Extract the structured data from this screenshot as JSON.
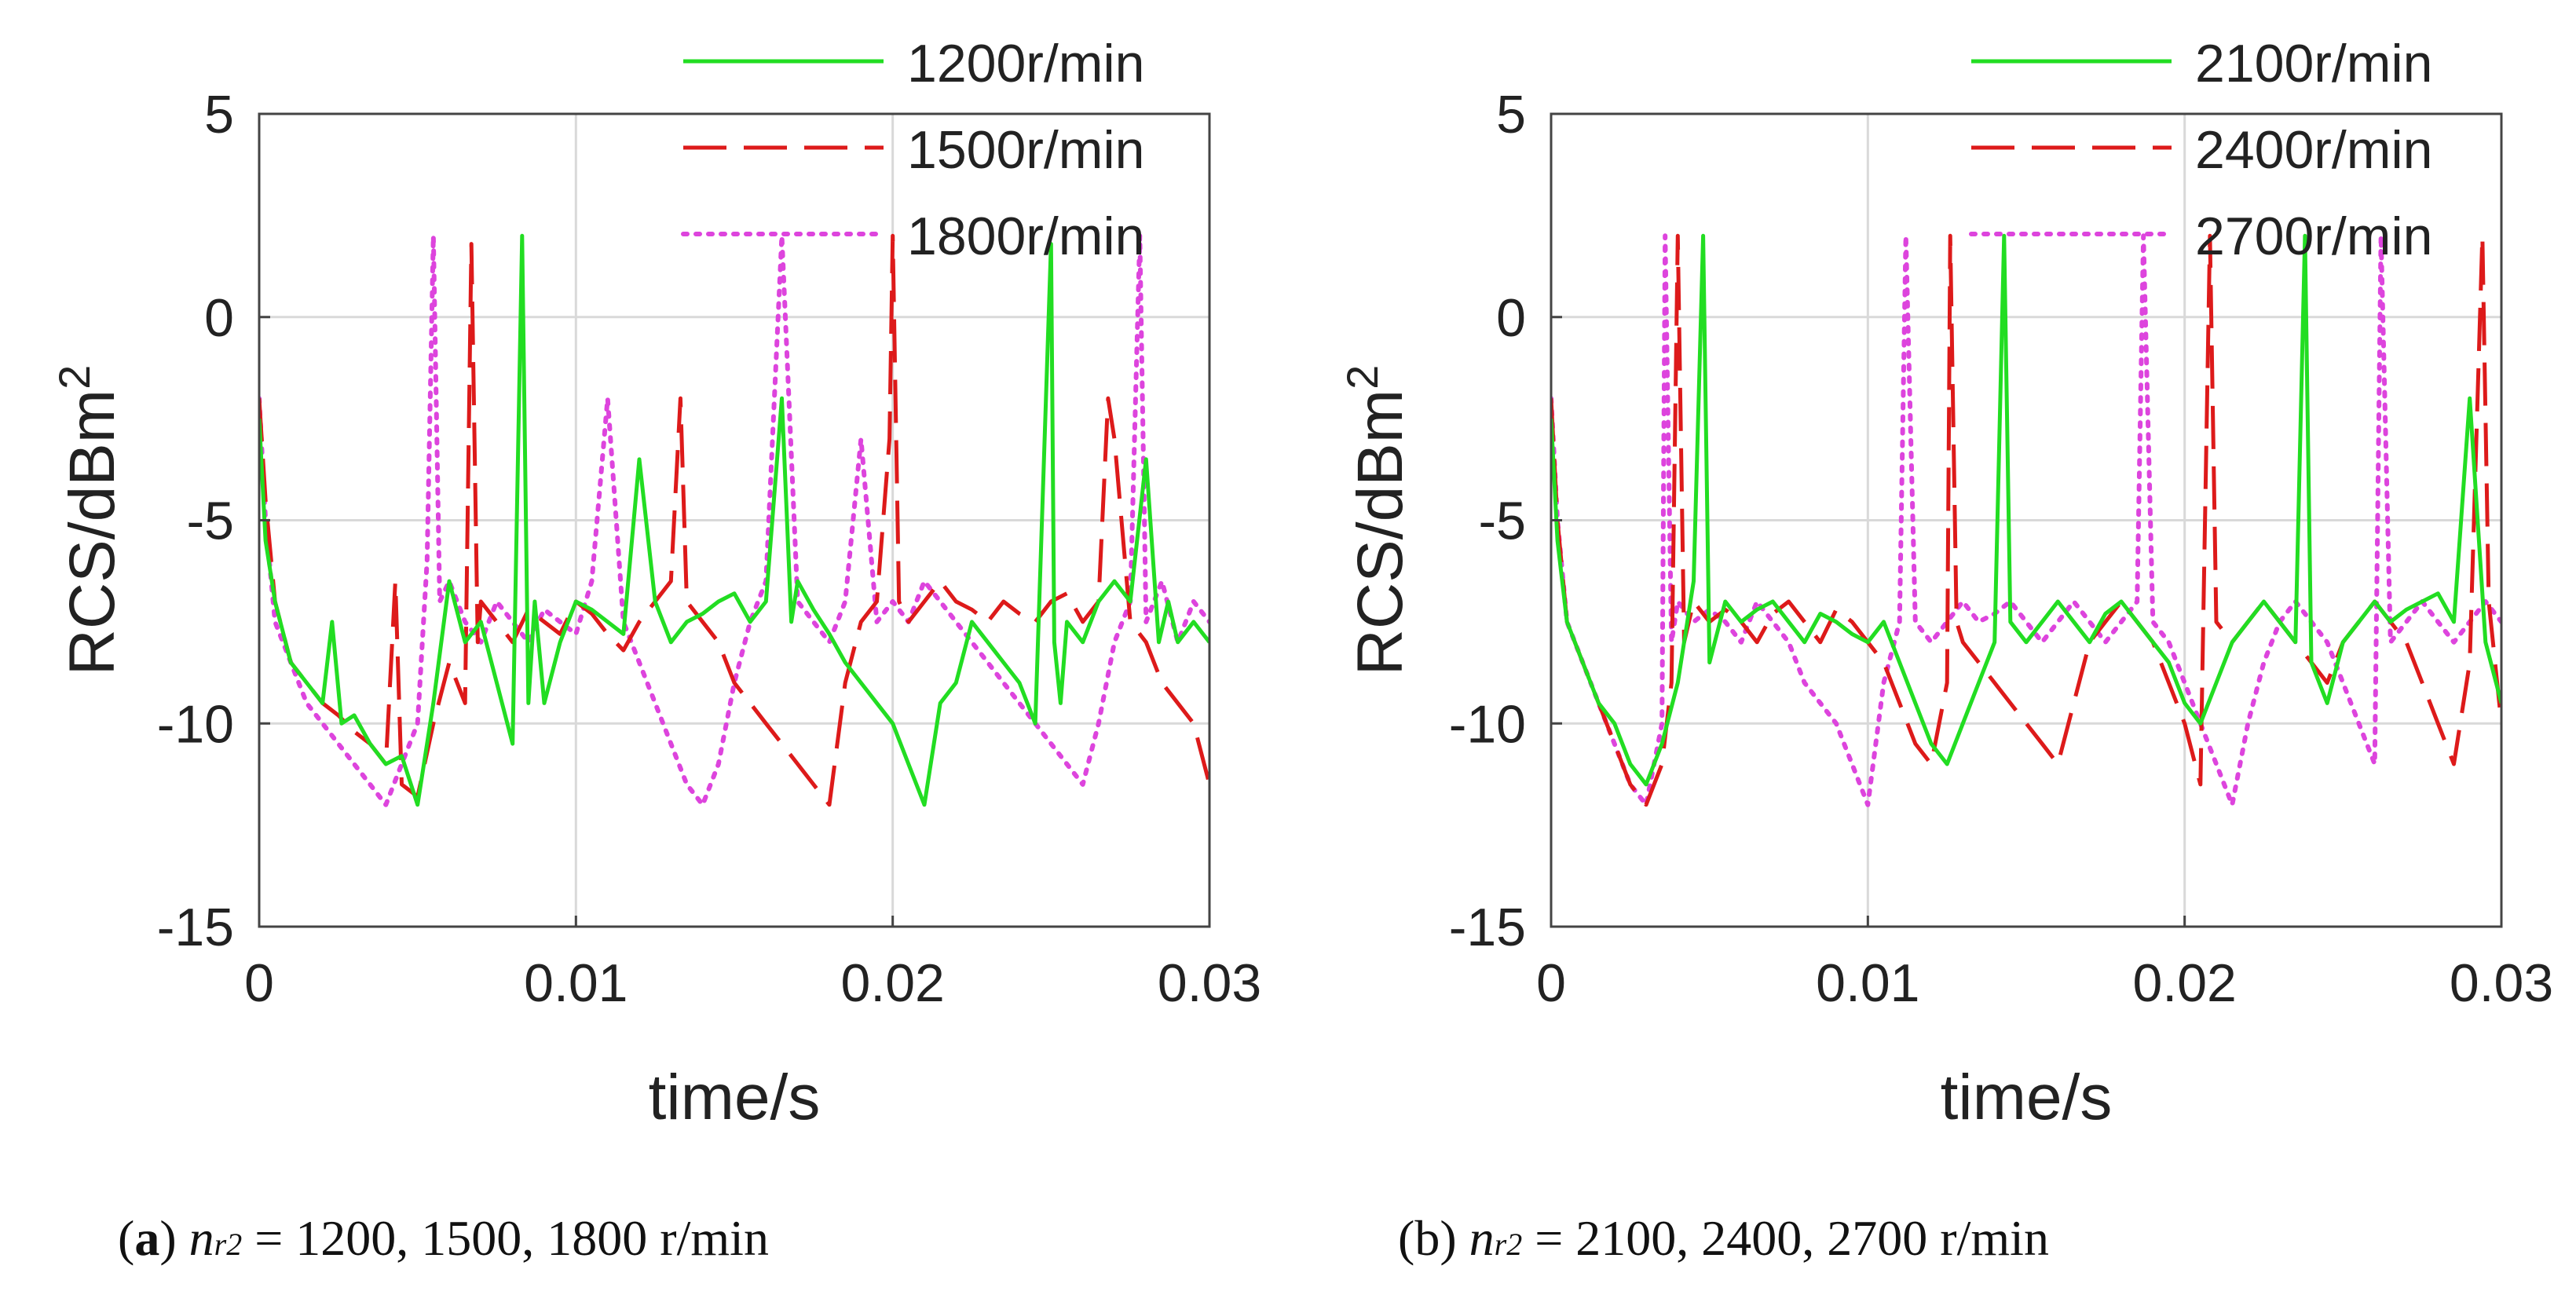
{
  "colors": {
    "green": "#22dd22",
    "red": "#dd1a1a",
    "magenta": "#dd44dd",
    "grid": "#d9d9d9",
    "axis": "#444444"
  },
  "chart_data": [
    {
      "type": "line",
      "panel": "a",
      "xlabel": "time/s",
      "ylabel": "RCS/dBm",
      "ylabel_sup": "2",
      "xlim": [
        0,
        0.03
      ],
      "ylim": [
        -15,
        5
      ],
      "xticks": [
        "0",
        "0.01",
        "0.02",
        "0.03"
      ],
      "yticks": [
        "5",
        "0",
        "-5",
        "-10",
        "-15"
      ],
      "grid": true,
      "legend_position": "top-right, above the plot",
      "series": [
        {
          "name": "1200r/min",
          "style": "solid",
          "color": "#22dd22",
          "x": [
            0.0,
            0.0002,
            0.0005,
            0.001,
            0.0015,
            0.002,
            0.0023,
            0.0026,
            0.003,
            0.0035,
            0.004,
            0.0045,
            0.005,
            0.0055,
            0.006,
            0.0065,
            0.007,
            0.0075,
            0.008,
            0.0083,
            0.0085,
            0.0087,
            0.009,
            0.0095,
            0.01,
            0.0105,
            0.011,
            0.0115,
            0.012,
            0.0125,
            0.013,
            0.0135,
            0.014,
            0.0145,
            0.015,
            0.0155,
            0.016,
            0.0165,
            0.0168,
            0.017,
            0.0175,
            0.018,
            0.0185,
            0.019,
            0.0195,
            0.02,
            0.0205,
            0.021,
            0.0215,
            0.022,
            0.0225,
            0.023,
            0.0235,
            0.024,
            0.0245,
            0.025,
            0.0251,
            0.0253,
            0.0255,
            0.026,
            0.0265,
            0.027,
            0.0275,
            0.028,
            0.0284,
            0.0287,
            0.029,
            0.0295,
            0.03
          ],
          "y": [
            -2.5,
            -5.5,
            -7.0,
            -8.5,
            -9.0,
            -9.5,
            -7.5,
            -10.0,
            -9.8,
            -10.5,
            -11.0,
            -10.8,
            -12.0,
            -9.5,
            -6.5,
            -8.0,
            -7.5,
            -9.0,
            -10.5,
            2.0,
            -9.5,
            -7.0,
            -9.5,
            -8.0,
            -7.0,
            -7.2,
            -7.5,
            -7.8,
            -3.5,
            -7.0,
            -8.0,
            -7.5,
            -7.3,
            -7.0,
            -6.8,
            -7.5,
            -7.0,
            -2.0,
            -7.5,
            -6.5,
            -7.2,
            -7.8,
            -8.5,
            -9.0,
            -9.5,
            -10.0,
            -11.0,
            -12.0,
            -9.5,
            -9.0,
            -7.5,
            -8.0,
            -8.5,
            -9.0,
            -10.0,
            1.8,
            -8.0,
            -9.5,
            -7.5,
            -8.0,
            -7.0,
            -6.5,
            -7.0,
            -3.5,
            -8.0,
            -7.0,
            -8.0,
            -7.5,
            -8.0
          ]
        },
        {
          "name": "1500r/min",
          "style": "dashed",
          "color": "#dd1a1a",
          "x": [
            0.0,
            0.0002,
            0.0005,
            0.001,
            0.0015,
            0.002,
            0.0025,
            0.003,
            0.0035,
            0.004,
            0.0043,
            0.0045,
            0.005,
            0.0055,
            0.006,
            0.0065,
            0.0067,
            0.0069,
            0.007,
            0.0075,
            0.008,
            0.0085,
            0.009,
            0.0095,
            0.01,
            0.0105,
            0.011,
            0.0115,
            0.012,
            0.0125,
            0.013,
            0.0133,
            0.0135,
            0.014,
            0.0145,
            0.015,
            0.0155,
            0.016,
            0.0165,
            0.017,
            0.0175,
            0.018,
            0.0185,
            0.019,
            0.0195,
            0.0199,
            0.02,
            0.0202,
            0.0205,
            0.021,
            0.0215,
            0.022,
            0.0225,
            0.023,
            0.0235,
            0.024,
            0.0245,
            0.025,
            0.0255,
            0.026,
            0.0265,
            0.0268,
            0.027,
            0.0275,
            0.028,
            0.0285,
            0.029,
            0.0295,
            0.03
          ],
          "y": [
            -2.0,
            -4.5,
            -7.0,
            -8.5,
            -9.0,
            -9.5,
            -9.8,
            -10.2,
            -10.5,
            -11.0,
            -6.5,
            -11.5,
            -11.8,
            -10.0,
            -8.5,
            -9.5,
            1.8,
            -8.0,
            -7.0,
            -7.5,
            -8.0,
            -7.2,
            -7.5,
            -7.8,
            -7.0,
            -7.3,
            -7.8,
            -8.2,
            -7.5,
            -7.0,
            -6.5,
            -2.0,
            -7.0,
            -7.5,
            -8.0,
            -9.0,
            -9.5,
            -10.0,
            -10.5,
            -11.0,
            -11.5,
            -12.0,
            -9.0,
            -7.5,
            -7.0,
            -3.0,
            2.0,
            -7.0,
            -7.5,
            -7.0,
            -6.5,
            -7.0,
            -7.2,
            -7.5,
            -7.0,
            -7.3,
            -7.5,
            -7.0,
            -6.8,
            -7.5,
            -7.0,
            -2.0,
            -3.0,
            -7.5,
            -8.0,
            -9.0,
            -9.5,
            -10.0,
            -11.5
          ]
        },
        {
          "name": "1800r/min",
          "style": "dotted",
          "color": "#dd44dd",
          "x": [
            0.0,
            0.0002,
            0.0005,
            0.001,
            0.0015,
            0.002,
            0.0025,
            0.003,
            0.0035,
            0.004,
            0.0045,
            0.005,
            0.0053,
            0.0055,
            0.0057,
            0.006,
            0.0065,
            0.007,
            0.0075,
            0.008,
            0.0085,
            0.009,
            0.0095,
            0.01,
            0.0105,
            0.011,
            0.0115,
            0.012,
            0.0125,
            0.013,
            0.0135,
            0.014,
            0.0145,
            0.015,
            0.0155,
            0.016,
            0.0165,
            0.017,
            0.0175,
            0.018,
            0.0185,
            0.019,
            0.0195,
            0.02,
            0.0205,
            0.021,
            0.0215,
            0.022,
            0.0225,
            0.023,
            0.0235,
            0.024,
            0.0245,
            0.025,
            0.0255,
            0.026,
            0.0265,
            0.027,
            0.0275,
            0.0278,
            0.028,
            0.0285,
            0.029,
            0.0295,
            0.03
          ],
          "y": [
            -2.0,
            -5.0,
            -7.5,
            -8.5,
            -9.5,
            -10.0,
            -10.5,
            -11.0,
            -11.5,
            -12.0,
            -11.0,
            -10.0,
            -6.0,
            2.0,
            -7.0,
            -6.5,
            -7.5,
            -8.0,
            -7.0,
            -7.5,
            -8.0,
            -7.2,
            -7.5,
            -7.8,
            -6.5,
            -2.0,
            -7.5,
            -8.5,
            -9.5,
            -10.5,
            -11.5,
            -12.0,
            -11.0,
            -9.0,
            -7.5,
            -6.5,
            2.0,
            -7.0,
            -7.5,
            -8.0,
            -7.0,
            -3.0,
            -7.5,
            -7.0,
            -7.5,
            -6.5,
            -7.0,
            -7.5,
            -8.0,
            -8.5,
            -9.0,
            -9.5,
            -10.0,
            -10.5,
            -11.0,
            -11.5,
            -10.0,
            -8.0,
            -7.0,
            2.0,
            -7.5,
            -6.5,
            -8.0,
            -7.0,
            -7.5
          ]
        }
      ]
    },
    {
      "type": "line",
      "panel": "b",
      "xlabel": "time/s",
      "ylabel": "RCS/dBm",
      "ylabel_sup": "2",
      "xlim": [
        0,
        0.03
      ],
      "ylim": [
        -15,
        5
      ],
      "xticks": [
        "0",
        "0.01",
        "0.02",
        "0.03"
      ],
      "yticks": [
        "5",
        "0",
        "-5",
        "-10",
        "-15"
      ],
      "grid": true,
      "legend_position": "top-right, above the plot",
      "series": [
        {
          "name": "2100r/min",
          "style": "solid",
          "color": "#22dd22",
          "x": [
            0.0,
            0.0002,
            0.0005,
            0.001,
            0.0015,
            0.002,
            0.0025,
            0.003,
            0.0035,
            0.004,
            0.0045,
            0.0048,
            0.005,
            0.0055,
            0.006,
            0.0065,
            0.007,
            0.0075,
            0.008,
            0.0085,
            0.009,
            0.0095,
            0.01,
            0.0105,
            0.011,
            0.0115,
            0.012,
            0.0125,
            0.013,
            0.0135,
            0.014,
            0.0143,
            0.0145,
            0.015,
            0.0155,
            0.016,
            0.0165,
            0.017,
            0.0175,
            0.018,
            0.0185,
            0.019,
            0.0195,
            0.02,
            0.0205,
            0.021,
            0.0215,
            0.022,
            0.0225,
            0.023,
            0.0235,
            0.0238,
            0.024,
            0.0245,
            0.025,
            0.0255,
            0.026,
            0.0265,
            0.027,
            0.0275,
            0.028,
            0.0285,
            0.029,
            0.0295,
            0.03
          ],
          "y": [
            -2.5,
            -5.5,
            -7.5,
            -8.5,
            -9.5,
            -10.0,
            -11.0,
            -11.5,
            -10.5,
            -9.0,
            -6.5,
            2.0,
            -8.5,
            -7.0,
            -7.5,
            -7.2,
            -7.0,
            -7.5,
            -8.0,
            -7.3,
            -7.5,
            -7.8,
            -8.0,
            -7.5,
            -8.5,
            -9.5,
            -10.5,
            -11.0,
            -10.0,
            -9.0,
            -8.0,
            2.0,
            -7.5,
            -8.0,
            -7.5,
            -7.0,
            -7.5,
            -8.0,
            -7.3,
            -7.0,
            -7.5,
            -8.0,
            -8.5,
            -9.5,
            -10.0,
            -9.0,
            -8.0,
            -7.5,
            -7.0,
            -7.5,
            -8.0,
            2.0,
            -8.5,
            -9.5,
            -8.0,
            -7.5,
            -7.0,
            -7.5,
            -7.2,
            -7.0,
            -6.8,
            -7.5,
            -2.0,
            -8.0,
            -9.5
          ]
        },
        {
          "name": "2400r/min",
          "style": "dashed",
          "color": "#dd1a1a",
          "x": [
            0.0,
            0.0002,
            0.0005,
            0.001,
            0.0015,
            0.002,
            0.0025,
            0.003,
            0.0035,
            0.0038,
            0.004,
            0.0042,
            0.0045,
            0.005,
            0.0055,
            0.006,
            0.0065,
            0.007,
            0.0075,
            0.008,
            0.0085,
            0.009,
            0.0095,
            0.01,
            0.0105,
            0.011,
            0.0115,
            0.012,
            0.0125,
            0.0126,
            0.0128,
            0.013,
            0.0135,
            0.014,
            0.0145,
            0.015,
            0.0155,
            0.016,
            0.0165,
            0.017,
            0.0175,
            0.018,
            0.0185,
            0.019,
            0.0195,
            0.02,
            0.0205,
            0.0208,
            0.021,
            0.0215,
            0.022,
            0.0225,
            0.023,
            0.0235,
            0.024,
            0.0245,
            0.025,
            0.0255,
            0.026,
            0.0265,
            0.027,
            0.0275,
            0.028,
            0.0285,
            0.029,
            0.0294,
            0.0296,
            0.03
          ],
          "y": [
            -2.0,
            -5.0,
            -7.5,
            -8.5,
            -9.5,
            -10.5,
            -11.5,
            -12.0,
            -11.0,
            -9.0,
            2.0,
            -8.0,
            -7.0,
            -7.5,
            -7.2,
            -7.5,
            -8.0,
            -7.3,
            -7.0,
            -7.5,
            -8.0,
            -7.2,
            -7.5,
            -8.0,
            -8.5,
            -9.5,
            -10.5,
            -11.0,
            -9.0,
            2.0,
            -7.5,
            -8.0,
            -8.5,
            -9.0,
            -9.5,
            -10.0,
            -10.5,
            -11.0,
            -9.5,
            -8.0,
            -7.5,
            -7.0,
            -7.5,
            -8.0,
            -9.0,
            -10.0,
            -11.5,
            2.0,
            -7.5,
            -8.0,
            -7.5,
            -7.0,
            -7.5,
            -8.0,
            -8.5,
            -9.0,
            -8.0,
            -7.5,
            -7.0,
            -7.5,
            -8.0,
            -9.0,
            -10.0,
            -11.0,
            -8.5,
            2.0,
            -7.0,
            -10.0
          ]
        },
        {
          "name": "2700r/min",
          "style": "dotted",
          "color": "#dd44dd",
          "x": [
            0.0,
            0.0002,
            0.0005,
            0.001,
            0.0015,
            0.002,
            0.0025,
            0.003,
            0.0035,
            0.0036,
            0.0038,
            0.004,
            0.0045,
            0.005,
            0.0055,
            0.006,
            0.0065,
            0.007,
            0.0075,
            0.008,
            0.0085,
            0.009,
            0.0095,
            0.01,
            0.0105,
            0.011,
            0.0112,
            0.0115,
            0.012,
            0.0125,
            0.013,
            0.0135,
            0.014,
            0.0145,
            0.015,
            0.0155,
            0.016,
            0.0165,
            0.017,
            0.0175,
            0.018,
            0.0185,
            0.0187,
            0.019,
            0.0195,
            0.02,
            0.0205,
            0.021,
            0.0215,
            0.022,
            0.0225,
            0.023,
            0.0235,
            0.024,
            0.0245,
            0.025,
            0.0255,
            0.026,
            0.0262,
            0.0265,
            0.027,
            0.0275,
            0.028,
            0.0285,
            0.029,
            0.0295,
            0.03
          ],
          "y": [
            -2.0,
            -5.0,
            -7.5,
            -8.5,
            -9.5,
            -10.5,
            -11.5,
            -12.0,
            -10.0,
            2.0,
            -8.0,
            -7.0,
            -7.5,
            -7.2,
            -7.5,
            -8.0,
            -7.0,
            -7.5,
            -8.0,
            -9.0,
            -9.5,
            -10.0,
            -11.0,
            -12.0,
            -9.0,
            -7.5,
            2.0,
            -7.5,
            -8.0,
            -7.5,
            -7.0,
            -7.5,
            -7.3,
            -7.0,
            -7.5,
            -8.0,
            -7.5,
            -7.0,
            -7.5,
            -8.0,
            -7.5,
            -7.0,
            2.0,
            -7.5,
            -8.0,
            -9.0,
            -10.0,
            -11.0,
            -12.0,
            -10.0,
            -8.5,
            -7.5,
            -7.0,
            -7.5,
            -8.0,
            -9.0,
            -10.0,
            -11.0,
            2.0,
            -8.0,
            -7.5,
            -7.0,
            -7.5,
            -8.0,
            -7.5,
            -7.0,
            -7.5
          ]
        }
      ]
    }
  ],
  "captions": [
    {
      "label": "a",
      "var": "n",
      "sub": "r2",
      "text": "= 1200, 1500, 1800 r/min"
    },
    {
      "label": "b",
      "var": "n",
      "sub": "r2",
      "text": "= 2100, 2400, 2700 r/min"
    }
  ]
}
